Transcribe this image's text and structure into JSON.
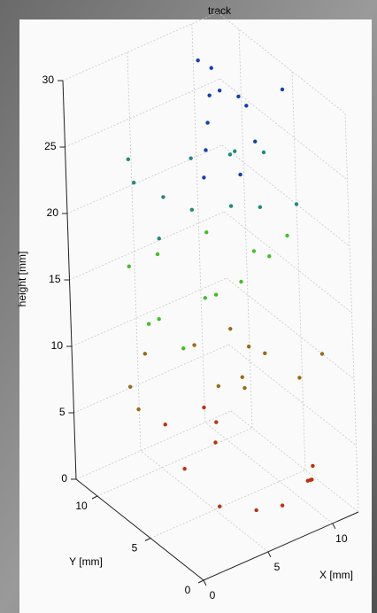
{
  "chart_data": {
    "type": "scatter3d",
    "title": "track",
    "xlabel": "X [mm]",
    "ylabel": "Y [mm]",
    "zlabel": "height [mm]",
    "xlim": [
      0,
      12
    ],
    "ylim": [
      0,
      12
    ],
    "zlim": [
      0,
      30
    ],
    "xticks": [
      0,
      5,
      10
    ],
    "yticks": [
      0,
      5,
      10
    ],
    "zticks": [
      0,
      5,
      10,
      15,
      20,
      25,
      30
    ],
    "grid": true,
    "series": [
      {
        "color": "#c0300a",
        "x": [
          10,
          10.5,
          9,
          7,
          5,
          3,
          2,
          3,
          6,
          6.5,
          6,
          11
        ],
        "y": [
          2,
          2.5,
          1,
          1,
          1,
          2,
          4,
          7,
          6,
          6.5,
          7,
          3
        ],
        "z": [
          2,
          1.5,
          3,
          2,
          2.5,
          3,
          5,
          6,
          4,
          5,
          6,
          2
        ]
      },
      {
        "color": "#9a6a10",
        "x": [
          1,
          2,
          4,
          7,
          9,
          10,
          11,
          12,
          8,
          6,
          4,
          9
        ],
        "y": [
          7,
          9,
          10,
          9,
          8,
          6,
          4,
          3,
          5,
          3,
          3,
          7
        ],
        "z": [
          8,
          8,
          9,
          9,
          10,
          9,
          8,
          10,
          11,
          10,
          11,
          7
        ]
      },
      {
        "color": "#40c020",
        "x": [
          3,
          2,
          3,
          6,
          9,
          11,
          12,
          9,
          6,
          4,
          2,
          8
        ],
        "y": [
          5,
          7,
          10,
          11,
          10,
          8,
          6,
          4,
          3,
          4,
          6,
          8
        ],
        "z": [
          13,
          14,
          16,
          15,
          16,
          15,
          17,
          18,
          18,
          17,
          15,
          13
        ]
      },
      {
        "color": "#208a7a",
        "x": [
          3,
          5,
          8,
          11,
          12,
          10,
          7,
          4,
          2,
          4,
          9,
          12
        ],
        "y": [
          7,
          9,
          10,
          10,
          8,
          6,
          5,
          5,
          8,
          11,
          7,
          5
        ],
        "z": [
          20,
          21,
          22,
          21,
          22,
          20,
          22,
          23,
          24,
          23,
          24,
          20
        ]
      },
      {
        "color": "#1040b0",
        "x": [
          6,
          7,
          8,
          9,
          8,
          10,
          12,
          11,
          5,
          7,
          9,
          8
        ],
        "y": [
          6,
          7,
          8,
          9,
          9,
          7,
          6,
          9,
          5,
          4,
          5,
          7
        ],
        "z": [
          26,
          27,
          28,
          29,
          30,
          27,
          28,
          26,
          25,
          25,
          26,
          29
        ]
      }
    ]
  }
}
